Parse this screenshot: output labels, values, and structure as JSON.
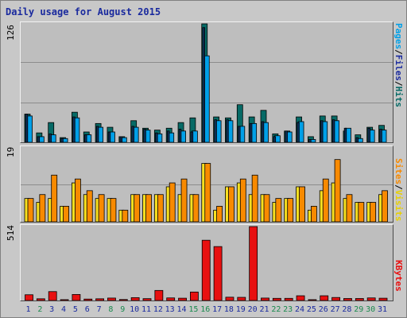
{
  "header": {
    "title": "Daily usage for August 2015"
  },
  "colors": {
    "pages": "#066a66",
    "files": "#00a0e8",
    "sites": "#f8e020",
    "visits": "#f88a00",
    "kbytes": "#e81010",
    "day_weekday": "#1a2a9e",
    "day_weekend": "#1a8a4e"
  },
  "panels": {
    "top": {
      "max_label": "126",
      "labels": [
        "Pages",
        "/",
        "Files",
        "/",
        "Hits"
      ]
    },
    "middle": {
      "max_label": "19",
      "labels": [
        "Sites",
        "/",
        "Visits"
      ]
    },
    "bottom": {
      "max_label": "514",
      "labels": [
        "KBytes"
      ]
    }
  },
  "chart_data": [
    {
      "type": "bar",
      "series": [
        {
          "name": "Hits",
          "values": [
            30,
            10,
            21,
            5,
            32,
            11,
            20,
            16,
            6,
            23,
            15,
            13,
            15,
            21,
            26,
            126,
            27,
            26,
            40,
            27,
            34,
            9,
            12,
            27,
            6,
            28,
            28,
            12,
            8,
            16,
            18
          ]
        },
        {
          "name": "Files",
          "values": [
            28,
            6,
            8,
            4,
            26,
            8,
            16,
            11,
            5,
            16,
            13,
            9,
            10,
            12,
            12,
            92,
            23,
            23,
            17,
            20,
            21,
            7,
            11,
            22,
            3,
            22,
            23,
            15,
            4,
            13,
            13
          ]
        },
        {
          "name": "Pages",
          "values": [
            30,
            6,
            9,
            4,
            27,
            8,
            17,
            11,
            6,
            17,
            14,
            10,
            12,
            14,
            11,
            122,
            24,
            24,
            17,
            20,
            22,
            6,
            12,
            21,
            3,
            23,
            24,
            15,
            5,
            15,
            14
          ]
        }
      ],
      "ylim": [
        0,
        126
      ]
    },
    {
      "type": "bar",
      "series": [
        {
          "name": "Sites",
          "values": [
            6,
            5,
            6,
            4,
            10,
            7,
            6,
            6,
            3,
            7,
            7,
            7,
            9,
            7,
            7,
            15,
            3,
            9,
            10,
            7,
            7,
            5,
            6,
            9,
            3,
            8,
            10,
            6,
            5,
            5,
            7
          ]
        },
        {
          "name": "Visits",
          "values": [
            6,
            7,
            12,
            4,
            11,
            8,
            7,
            6,
            3,
            7,
            7,
            7,
            10,
            11,
            7,
            15,
            4,
            9,
            11,
            12,
            7,
            6,
            6,
            9,
            4,
            11,
            16,
            7,
            5,
            5,
            8
          ]
        }
      ],
      "ylim": [
        0,
        19
      ]
    },
    {
      "type": "bar",
      "series": [
        {
          "name": "KBytes",
          "values": [
            40,
            12,
            62,
            6,
            42,
            10,
            12,
            17,
            7,
            20,
            13,
            70,
            18,
            16,
            59,
            419,
            375,
            23,
            22,
            514,
            17,
            15,
            15,
            33,
            6,
            33,
            21,
            14,
            14,
            18,
            16
          ]
        }
      ],
      "ylim": [
        0,
        514
      ]
    }
  ],
  "days": {
    "labels": [
      "1",
      "2",
      "3",
      "4",
      "5",
      "6",
      "7",
      "8",
      "9",
      "10",
      "11",
      "12",
      "13",
      "14",
      "15",
      "16",
      "17",
      "18",
      "19",
      "20",
      "21",
      "22",
      "23",
      "24",
      "25",
      "26",
      "27",
      "28",
      "29",
      "30",
      "31"
    ],
    "weekend": [
      false,
      true,
      false,
      false,
      false,
      false,
      false,
      true,
      true,
      false,
      false,
      false,
      false,
      false,
      true,
      true,
      false,
      false,
      false,
      false,
      false,
      true,
      true,
      false,
      false,
      false,
      false,
      false,
      true,
      true,
      false
    ]
  }
}
